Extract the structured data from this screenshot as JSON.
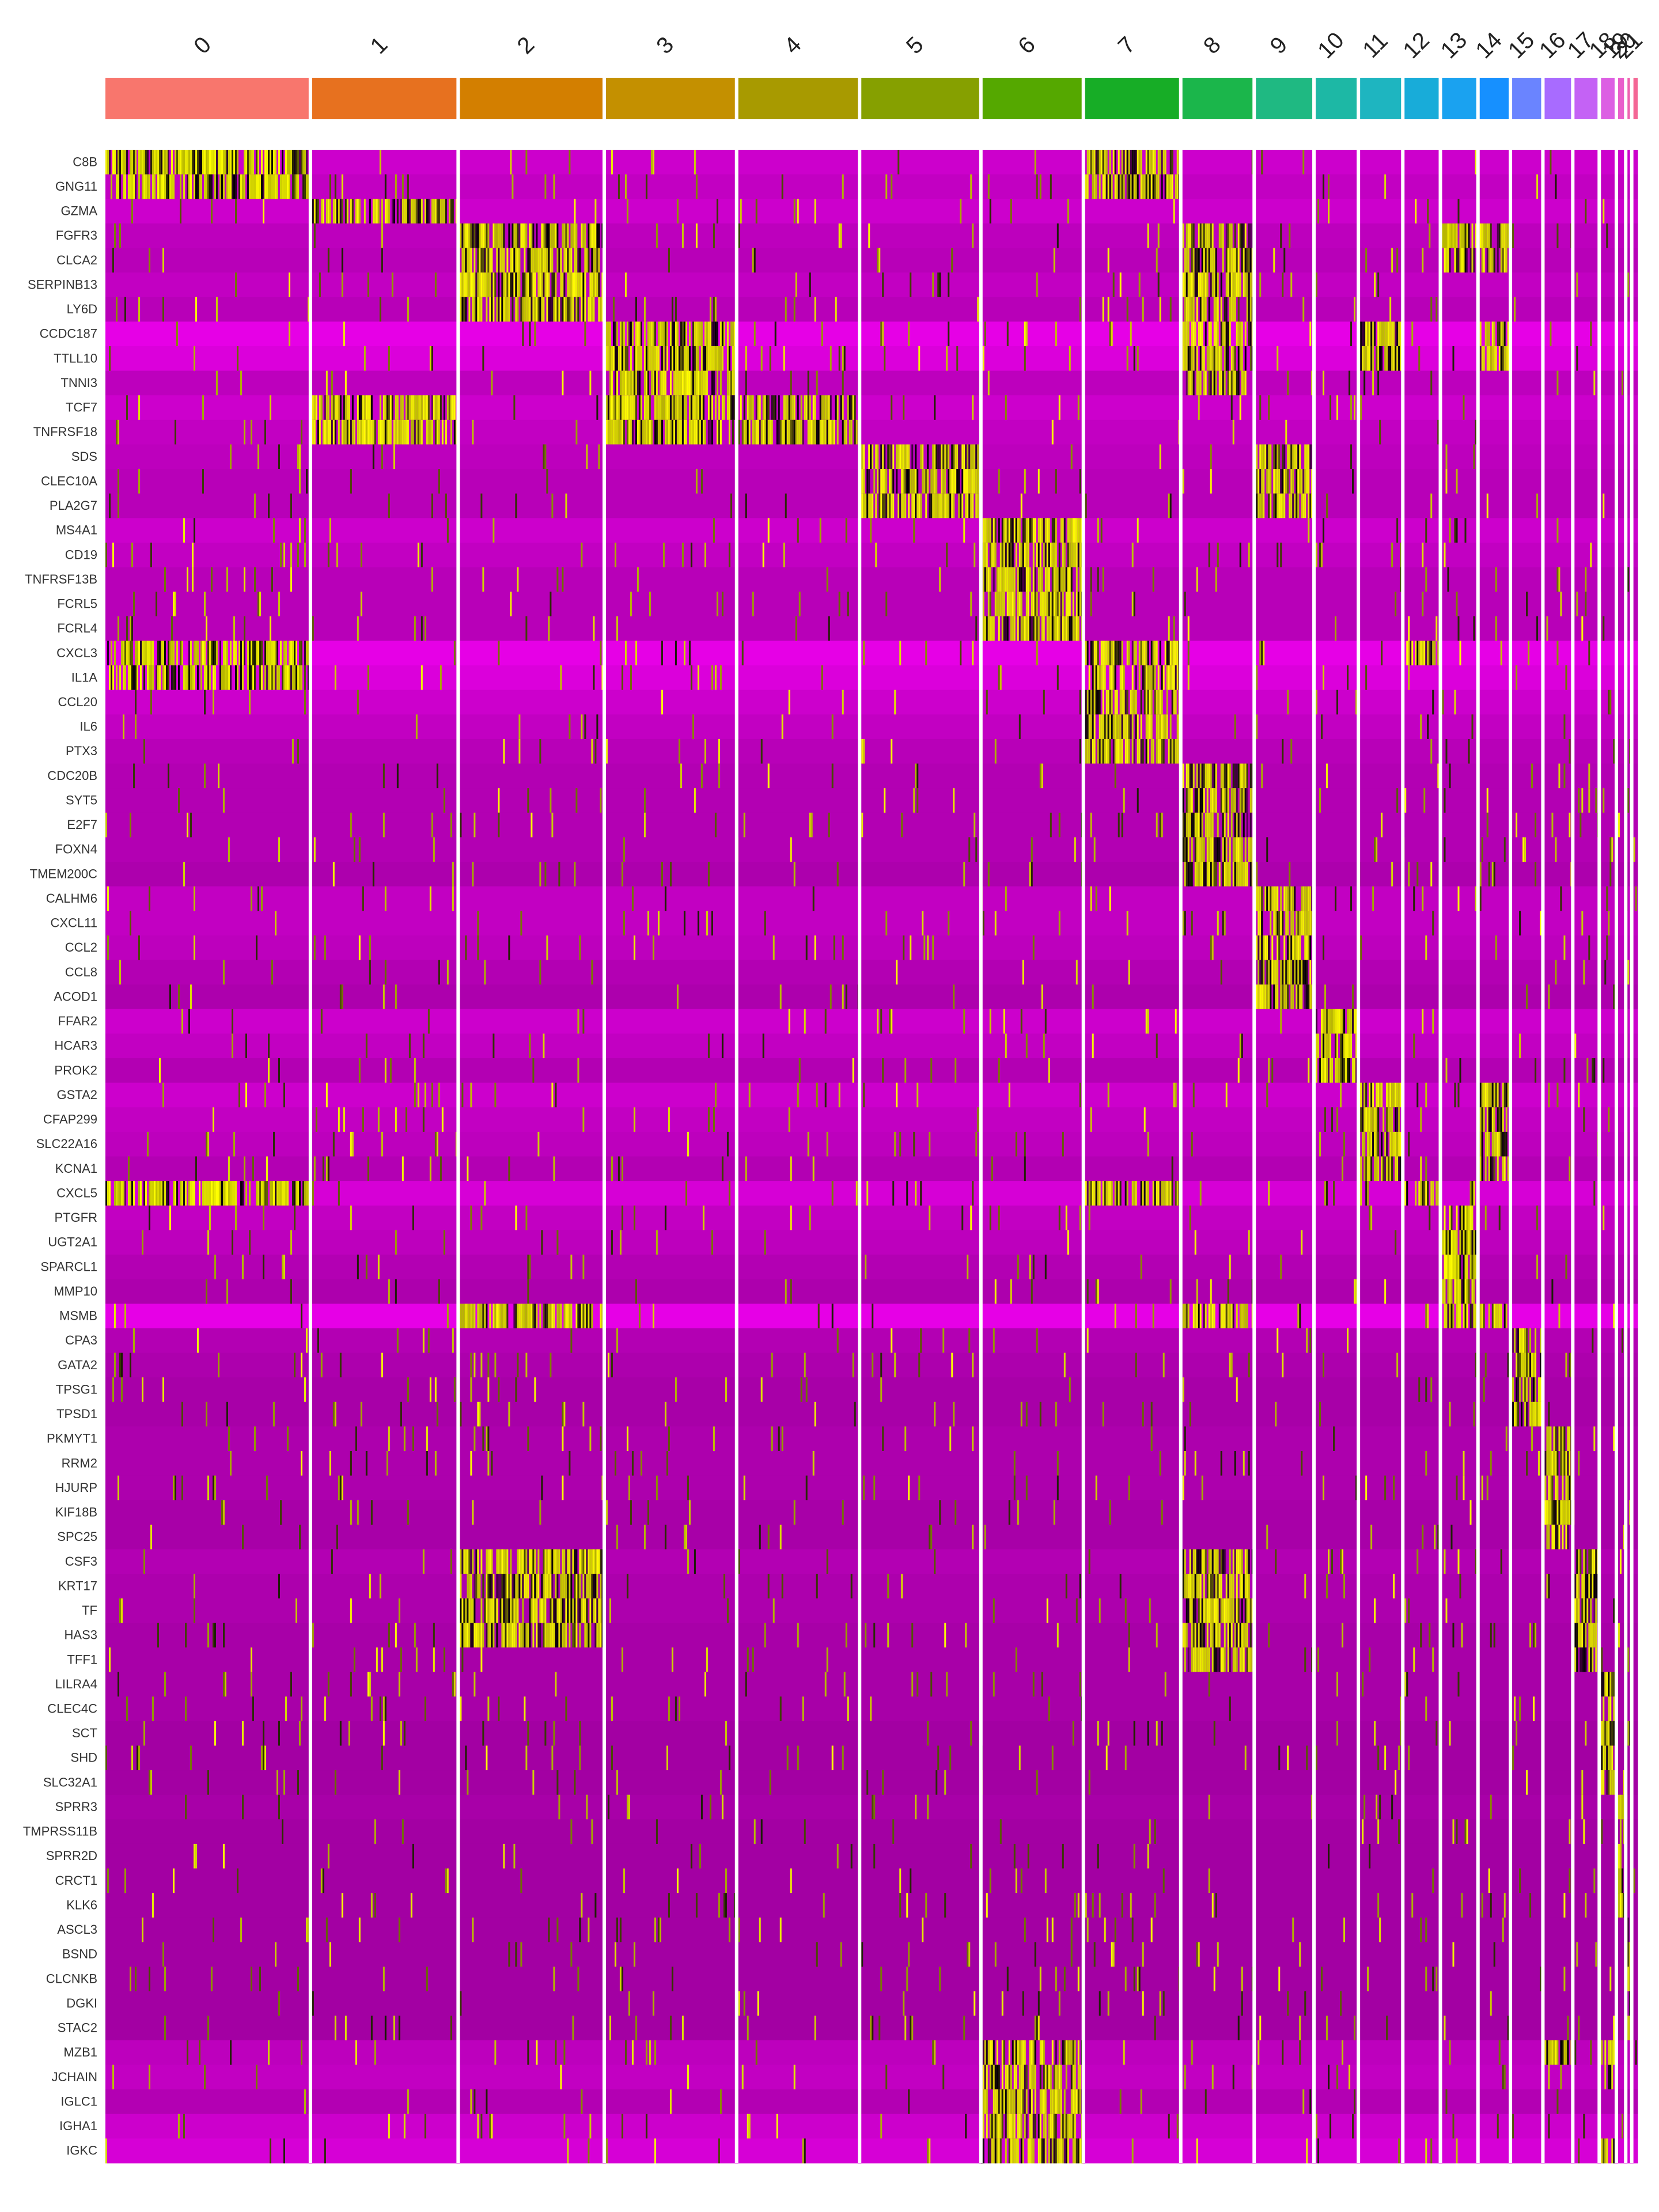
{
  "chart_data": {
    "type": "heatmap",
    "title": "",
    "xlabel": "",
    "ylabel": "",
    "legend": "none",
    "grid": false,
    "colors": {
      "low": "#ff00ff",
      "mid": "#000000",
      "high": "#ffff00",
      "background": "#ffffff",
      "separator": "#ffffff"
    },
    "clusters": [
      {
        "label": "0",
        "color": "#f8766d",
        "share": 0.12
      },
      {
        "label": "1",
        "color": "#e7711f",
        "share": 0.0865
      },
      {
        "label": "2",
        "color": "#d37f00",
        "share": 0.0855
      },
      {
        "label": "3",
        "color": "#c49000",
        "share": 0.0775
      },
      {
        "label": "4",
        "color": "#a89a00",
        "share": 0.072
      },
      {
        "label": "5",
        "color": "#86a000",
        "share": 0.071
      },
      {
        "label": "6",
        "color": "#55a800",
        "share": 0.06
      },
      {
        "label": "7",
        "color": "#17ad26",
        "share": 0.057
      },
      {
        "label": "8",
        "color": "#1bb64b",
        "share": 0.043
      },
      {
        "label": "9",
        "color": "#1fb982",
        "share": 0.035
      },
      {
        "label": "10",
        "color": "#1db8a5",
        "share": 0.026
      },
      {
        "label": "11",
        "color": "#1eb5c0",
        "share": 0.026
      },
      {
        "label": "12",
        "color": "#18acd9",
        "share": 0.022
      },
      {
        "label": "13",
        "color": "#1aa2f0",
        "share": 0.022
      },
      {
        "label": "14",
        "color": "#1690ff",
        "share": 0.019
      },
      {
        "label": "15",
        "color": "#6a84ff",
        "share": 0.019
      },
      {
        "label": "16",
        "color": "#a86bff",
        "share": 0.0175
      },
      {
        "label": "17",
        "color": "#c462f5",
        "share": 0.0155
      },
      {
        "label": "18",
        "color": "#dc5fe3",
        "share": 0.01
      },
      {
        "label": "19",
        "color": "#e95fcb",
        "share": 0.0055
      },
      {
        "label": "20",
        "color": "#ee63b0",
        "share": 0.0035
      },
      {
        "label": "21",
        "color": "#f46795",
        "share": 0.0035
      }
    ],
    "genes": [
      "C8B",
      "GNG11",
      "GZMA",
      "FGFR3",
      "CLCA2",
      "SERPINB13",
      "LY6D",
      "CCDC187",
      "TTLL10",
      "TNNI3",
      "TCF7",
      "TNFRSF18",
      "SDS",
      "CLEC10A",
      "PLA2G7",
      "MS4A1",
      "CD19",
      "TNFRSF13B",
      "FCRL5",
      "FCRL4",
      "CXCL3",
      "IL1A",
      "CCL20",
      "IL6",
      "PTX3",
      "CDC20B",
      "SYT5",
      "E2F7",
      "FOXN4",
      "TMEM200C",
      "CALHM6",
      "CXCL11",
      "CCL2",
      "CCL8",
      "ACOD1",
      "FFAR2",
      "HCAR3",
      "PROK2",
      "GSTA2",
      "CFAP299",
      "SLC22A16",
      "KCNA1",
      "CXCL5",
      "PTGFR",
      "UGT2A1",
      "SPARCL1",
      "MMP10",
      "MSMB",
      "CPA3",
      "GATA2",
      "TPSG1",
      "TPSD1",
      "PKMYT1",
      "RRM2",
      "HJURP",
      "KIF18B",
      "SPC25",
      "CSF3",
      "KRT17",
      "TF",
      "HAS3",
      "TFF1",
      "LILRA4",
      "CLEC4C",
      "SCT",
      "SHD",
      "SLC32A1",
      "SPRR3",
      "TMPRSS11B",
      "SPRR2D",
      "CRCT1",
      "KLK6",
      "ASCL3",
      "BSND",
      "CLCNKB",
      "DGKI",
      "STAC2",
      "MZB1",
      "JCHAIN",
      "IGLC1",
      "IGHA1",
      "IGKC"
    ],
    "baseline_expression": [
      0.1,
      0.12,
      0.1,
      0.13,
      0.14,
      0.12,
      0.14,
      0.05,
      0.07,
      0.13,
      0.1,
      0.12,
      0.13,
      0.14,
      0.14,
      0.1,
      0.12,
      0.14,
      0.14,
      0.14,
      0.05,
      0.07,
      0.1,
      0.12,
      0.14,
      0.15,
      0.15,
      0.15,
      0.15,
      0.16,
      0.12,
      0.12,
      0.13,
      0.15,
      0.16,
      0.1,
      0.12,
      0.15,
      0.1,
      0.12,
      0.13,
      0.15,
      0.08,
      0.12,
      0.13,
      0.15,
      0.16,
      0.05,
      0.15,
      0.16,
      0.17,
      0.17,
      0.16,
      0.16,
      0.16,
      0.17,
      0.17,
      0.15,
      0.16,
      0.16,
      0.17,
      0.17,
      0.17,
      0.17,
      0.18,
      0.18,
      0.18,
      0.17,
      0.18,
      0.18,
      0.18,
      0.18,
      0.18,
      0.18,
      0.18,
      0.18,
      0.18,
      0.13,
      0.12,
      0.15,
      0.1,
      0.08
    ],
    "high_expression": [
      {
        "gene": "C8B",
        "clusters": [
          "0",
          "7"
        ]
      },
      {
        "gene": "GNG11",
        "clusters": [
          "0",
          "7"
        ]
      },
      {
        "gene": "GZMA",
        "clusters": [
          "1"
        ]
      },
      {
        "gene": "FGFR3",
        "clusters": [
          "2",
          "8",
          "13",
          "14"
        ]
      },
      {
        "gene": "CLCA2",
        "clusters": [
          "2",
          "8",
          "13",
          "14"
        ]
      },
      {
        "gene": "SERPINB13",
        "clusters": [
          "2",
          "8"
        ]
      },
      {
        "gene": "LY6D",
        "clusters": [
          "2",
          "8"
        ]
      },
      {
        "gene": "CCDC187",
        "clusters": [
          "3",
          "8",
          "11",
          "14"
        ]
      },
      {
        "gene": "TTLL10",
        "clusters": [
          "3",
          "8",
          "11",
          "14"
        ]
      },
      {
        "gene": "TNNI3",
        "clusters": [
          "3",
          "8"
        ]
      },
      {
        "gene": "TCF7",
        "clusters": [
          "1",
          "3",
          "4"
        ]
      },
      {
        "gene": "TNFRSF18",
        "clusters": [
          "1",
          "3",
          "4"
        ]
      },
      {
        "gene": "SDS",
        "clusters": [
          "5",
          "9"
        ]
      },
      {
        "gene": "CLEC10A",
        "clusters": [
          "5",
          "9"
        ]
      },
      {
        "gene": "PLA2G7",
        "clusters": [
          "5",
          "9"
        ]
      },
      {
        "gene": "MS4A1",
        "clusters": [
          "6"
        ]
      },
      {
        "gene": "CD19",
        "clusters": [
          "6"
        ]
      },
      {
        "gene": "TNFRSF13B",
        "clusters": [
          "6"
        ]
      },
      {
        "gene": "FCRL5",
        "clusters": [
          "6"
        ]
      },
      {
        "gene": "FCRL4",
        "clusters": [
          "6"
        ]
      },
      {
        "gene": "CXCL3",
        "clusters": [
          "0",
          "7",
          "12"
        ]
      },
      {
        "gene": "IL1A",
        "clusters": [
          "0",
          "7"
        ]
      },
      {
        "gene": "CCL20",
        "clusters": [
          "7"
        ]
      },
      {
        "gene": "IL6",
        "clusters": [
          "7"
        ]
      },
      {
        "gene": "PTX3",
        "clusters": [
          "7"
        ]
      },
      {
        "gene": "CDC20B",
        "clusters": [
          "8"
        ]
      },
      {
        "gene": "SYT5",
        "clusters": [
          "8"
        ]
      },
      {
        "gene": "E2F7",
        "clusters": [
          "8"
        ]
      },
      {
        "gene": "FOXN4",
        "clusters": [
          "8"
        ]
      },
      {
        "gene": "TMEM200C",
        "clusters": [
          "8"
        ]
      },
      {
        "gene": "CALHM6",
        "clusters": [
          "9"
        ]
      },
      {
        "gene": "CXCL11",
        "clusters": [
          "9"
        ]
      },
      {
        "gene": "CCL2",
        "clusters": [
          "9"
        ]
      },
      {
        "gene": "CCL8",
        "clusters": [
          "9"
        ]
      },
      {
        "gene": "ACOD1",
        "clusters": [
          "9"
        ]
      },
      {
        "gene": "FFAR2",
        "clusters": [
          "10"
        ]
      },
      {
        "gene": "HCAR3",
        "clusters": [
          "10"
        ]
      },
      {
        "gene": "PROK2",
        "clusters": [
          "10"
        ]
      },
      {
        "gene": "GSTA2",
        "clusters": [
          "11",
          "14"
        ]
      },
      {
        "gene": "CFAP299",
        "clusters": [
          "11",
          "14"
        ]
      },
      {
        "gene": "SLC22A16",
        "clusters": [
          "11",
          "14"
        ]
      },
      {
        "gene": "KCNA1",
        "clusters": [
          "11",
          "14"
        ]
      },
      {
        "gene": "CXCL5",
        "clusters": [
          "0",
          "7",
          "12"
        ]
      },
      {
        "gene": "PTGFR",
        "clusters": [
          "13"
        ]
      },
      {
        "gene": "UGT2A1",
        "clusters": [
          "13"
        ]
      },
      {
        "gene": "SPARCL1",
        "clusters": [
          "13"
        ]
      },
      {
        "gene": "MMP10",
        "clusters": [
          "13"
        ]
      },
      {
        "gene": "MSMB",
        "clusters": [
          "2",
          "8",
          "13",
          "14"
        ]
      },
      {
        "gene": "CPA3",
        "clusters": [
          "15"
        ]
      },
      {
        "gene": "GATA2",
        "clusters": [
          "15"
        ]
      },
      {
        "gene": "TPSG1",
        "clusters": [
          "15"
        ]
      },
      {
        "gene": "TPSD1",
        "clusters": [
          "15"
        ]
      },
      {
        "gene": "PKMYT1",
        "clusters": [
          "16"
        ]
      },
      {
        "gene": "RRM2",
        "clusters": [
          "16"
        ]
      },
      {
        "gene": "HJURP",
        "clusters": [
          "16"
        ]
      },
      {
        "gene": "KIF18B",
        "clusters": [
          "16"
        ]
      },
      {
        "gene": "SPC25",
        "clusters": [
          "16"
        ]
      },
      {
        "gene": "CSF3",
        "clusters": [
          "2",
          "8",
          "17"
        ]
      },
      {
        "gene": "KRT17",
        "clusters": [
          "2",
          "8",
          "17"
        ]
      },
      {
        "gene": "TF",
        "clusters": [
          "2",
          "8",
          "17"
        ]
      },
      {
        "gene": "HAS3",
        "clusters": [
          "2",
          "8",
          "17"
        ]
      },
      {
        "gene": "TFF1",
        "clusters": [
          "8",
          "17"
        ]
      },
      {
        "gene": "LILRA4",
        "clusters": [
          "18"
        ]
      },
      {
        "gene": "CLEC4C",
        "clusters": [
          "18"
        ]
      },
      {
        "gene": "SCT",
        "clusters": [
          "18"
        ]
      },
      {
        "gene": "SHD",
        "clusters": [
          "18"
        ]
      },
      {
        "gene": "SLC32A1",
        "clusters": [
          "18"
        ]
      },
      {
        "gene": "SPRR3",
        "clusters": [
          "19"
        ]
      },
      {
        "gene": "TMPRSS11B",
        "clusters": [
          "19"
        ]
      },
      {
        "gene": "SPRR2D",
        "clusters": [
          "19"
        ]
      },
      {
        "gene": "CRCT1",
        "clusters": [
          "19"
        ]
      },
      {
        "gene": "KLK6",
        "clusters": [
          "19"
        ]
      },
      {
        "gene": "ASCL3",
        "clusters": [
          "20"
        ]
      },
      {
        "gene": "BSND",
        "clusters": [
          "20"
        ]
      },
      {
        "gene": "CLCNKB",
        "clusters": [
          "20"
        ]
      },
      {
        "gene": "DGKI",
        "clusters": [
          "20"
        ]
      },
      {
        "gene": "STAC2",
        "clusters": [
          "20"
        ]
      },
      {
        "gene": "MZB1",
        "clusters": [
          "6",
          "16",
          "18"
        ]
      },
      {
        "gene": "JCHAIN",
        "clusters": [
          "6",
          "18"
        ]
      },
      {
        "gene": "IGLC1",
        "clusters": [
          "6"
        ]
      },
      {
        "gene": "IGHA1",
        "clusters": [
          "6"
        ]
      },
      {
        "gene": "IGKC",
        "clusters": [
          "6",
          "18"
        ]
      }
    ]
  }
}
